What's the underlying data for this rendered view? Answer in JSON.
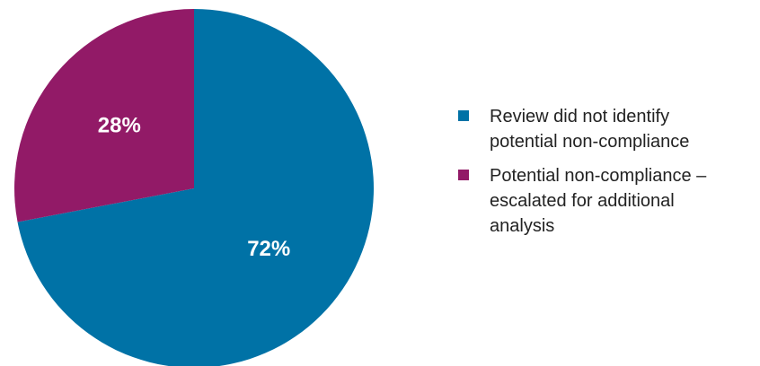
{
  "chart_data": {
    "type": "pie",
    "categories": [
      "Review did not identify potential non-compliance",
      "Potential non-compliance – escalated for additional analysis"
    ],
    "values": [
      72,
      28
    ],
    "value_labels": [
      "72%",
      "28%"
    ],
    "colors": [
      "#0072a6",
      "#921a67"
    ]
  }
}
